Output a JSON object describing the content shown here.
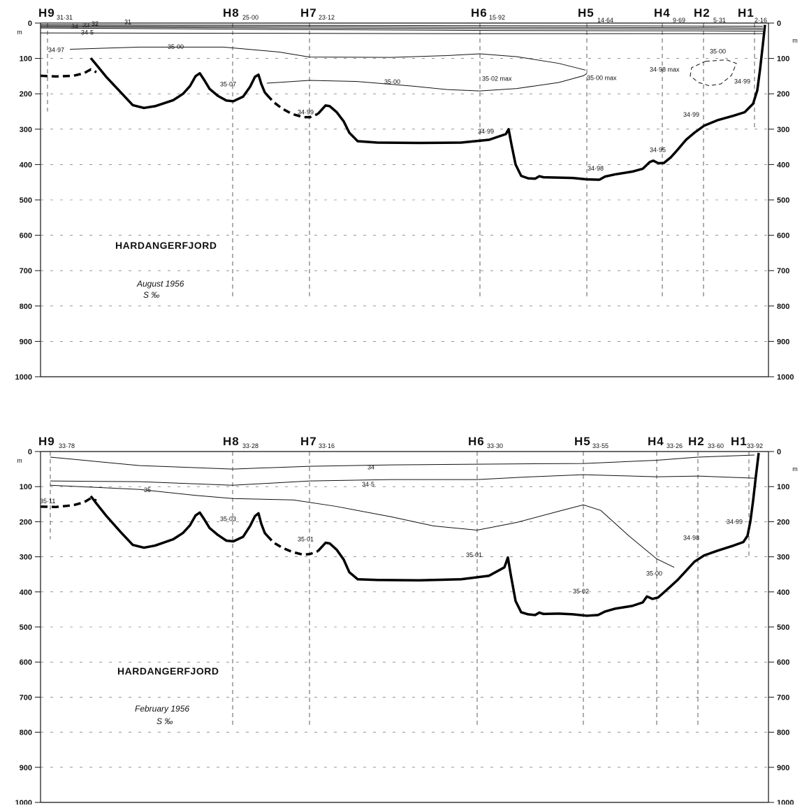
{
  "figure": {
    "depth_unit_left": "m",
    "depth_unit_right": "m"
  },
  "chart_data": [
    {
      "type": "line",
      "title": "HARDANGERFJORD",
      "subtitle": "August 1956",
      "unit_label": "S ‰",
      "ylim": [
        0,
        1000
      ],
      "y_ticks": [
        "0",
        "100",
        "200",
        "300",
        "400",
        "500",
        "600",
        "700",
        "800",
        "900",
        "1000"
      ],
      "y_tick_values": [
        0,
        100,
        200,
        300,
        400,
        500,
        600,
        700,
        800,
        900,
        1000
      ],
      "stations": [
        {
          "name": "H9",
          "surface_salinity": "31·31"
        },
        {
          "name": "H8",
          "surface_salinity": "25·00"
        },
        {
          "name": "H7",
          "surface_salinity": "23·12"
        },
        {
          "name": "H6",
          "surface_salinity": "15·92"
        },
        {
          "name": "H5",
          "surface_salinity": "14·64"
        },
        {
          "name": "H4",
          "surface_salinity": "9·69"
        },
        {
          "name": "H2",
          "surface_salinity": "5·31"
        },
        {
          "name": "H1",
          "surface_salinity": "2·16"
        }
      ],
      "isolines": [
        {
          "label": "31"
        },
        {
          "label": "32"
        },
        {
          "label": "33"
        },
        {
          "label": "34"
        },
        {
          "label": "34·5"
        },
        {
          "label": "35·00"
        },
        {
          "label": "35·00"
        },
        {
          "label": "35·00"
        }
      ],
      "annotations": [
        {
          "text": "34·97"
        },
        {
          "text": "35·07"
        },
        {
          "text": "34·99"
        },
        {
          "text": "35·02 max"
        },
        {
          "text": "35·00 max"
        },
        {
          "text": "34·98 max"
        },
        {
          "text": "34·99"
        },
        {
          "text": "34·99"
        },
        {
          "text": "34·99"
        },
        {
          "text": "34·95"
        },
        {
          "text": "34·98"
        }
      ]
    },
    {
      "type": "line",
      "title": "HARDANGERFJORD",
      "subtitle": "February 1956",
      "unit_label": "S ‰",
      "ylim": [
        0,
        1000
      ],
      "y_ticks": [
        "0",
        "100",
        "200",
        "300",
        "400",
        "500",
        "600",
        "700",
        "800",
        "900",
        "1000"
      ],
      "y_tick_values": [
        0,
        100,
        200,
        300,
        400,
        500,
        600,
        700,
        800,
        900,
        1000
      ],
      "stations": [
        {
          "name": "H9",
          "surface_salinity": "33·78"
        },
        {
          "name": "H8",
          "surface_salinity": "33·28"
        },
        {
          "name": "H7",
          "surface_salinity": "33·16"
        },
        {
          "name": "H6",
          "surface_salinity": "33·30"
        },
        {
          "name": "H5",
          "surface_salinity": "33·55"
        },
        {
          "name": "H4",
          "surface_salinity": "33·26"
        },
        {
          "name": "H2",
          "surface_salinity": "33·60"
        },
        {
          "name": "H1",
          "surface_salinity": "33·92"
        }
      ],
      "isolines": [
        {
          "label": "34"
        },
        {
          "label": "34·5"
        },
        {
          "label": "35"
        },
        {
          "label": "35"
        }
      ],
      "annotations": [
        {
          "text": "35·11"
        },
        {
          "text": "35·03"
        },
        {
          "text": "35·01"
        },
        {
          "text": "35·01"
        },
        {
          "text": "35·02"
        },
        {
          "text": "35·00"
        },
        {
          "text": "34·98"
        },
        {
          "text": "34·99"
        }
      ]
    }
  ]
}
